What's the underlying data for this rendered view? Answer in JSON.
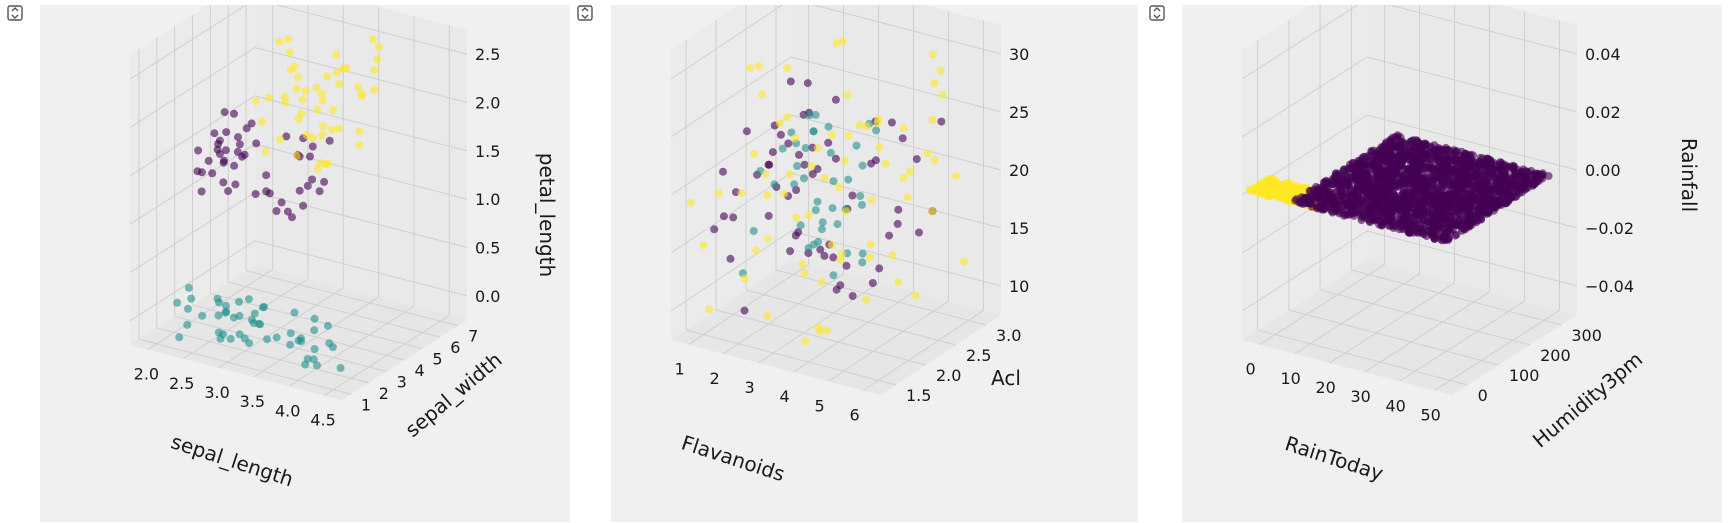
{
  "toolbar": {
    "expand_icon": "expand-output-icon"
  },
  "colors": {
    "panel_bg": "#f0f0f0",
    "grid": "#cfcfcf",
    "viridis_purple": "#440154",
    "viridis_teal": "#21918c",
    "viridis_yellow": "#fde725"
  },
  "chart_data": [
    {
      "type": "scatter",
      "projection": "3d",
      "title": "",
      "xlabel": "sepal_length",
      "ylabel": "sepal_width",
      "zlabel": "petal_length",
      "xticks": [
        "2.0",
        "2.5",
        "3.0",
        "3.5",
        "4.0",
        "4.5"
      ],
      "yticks": [
        "1",
        "2",
        "3",
        "4",
        "5",
        "6",
        "7"
      ],
      "zticks": [
        "0.0",
        "0.5",
        "1.0",
        "1.5",
        "2.0",
        "2.5"
      ],
      "xlim": [
        1.9,
        4.6
      ],
      "ylim": [
        0.5,
        7.3
      ],
      "zlim": [
        0.0,
        2.7
      ],
      "grid": true,
      "colormap": "viridis",
      "series": [
        {
          "color": "#440154",
          "x_range": [
            2.0,
            3.4
          ],
          "y_range": [
            3.0,
            5.1
          ],
          "z_range": [
            1.0,
            1.8
          ],
          "count": 50
        },
        {
          "color": "#21918c",
          "x_range": [
            2.3,
            4.4
          ],
          "y_range": [
            1.0,
            1.9
          ],
          "z_range": [
            0.1,
            0.6
          ],
          "count": 50
        },
        {
          "color": "#fde725",
          "x_range": [
            2.5,
            3.8
          ],
          "y_range": [
            4.5,
            6.9
          ],
          "z_range": [
            1.4,
            2.5
          ],
          "count": 50
        }
      ]
    },
    {
      "type": "scatter",
      "projection": "3d",
      "title": "",
      "xlabel": "Flavanoids",
      "ylabel": "Acl",
      "zlabel": "",
      "xticks": [
        "1",
        "2",
        "3",
        "4",
        "5",
        "6"
      ],
      "yticks": [
        "1.5",
        "2.0",
        "2.5",
        "3.0"
      ],
      "zticks": [
        "10",
        "15",
        "20",
        "25",
        "30"
      ],
      "xlim": [
        0.3,
        6.2
      ],
      "ylim": [
        1.3,
        3.3
      ],
      "zlim": [
        9,
        31
      ],
      "grid": true,
      "colormap": "viridis",
      "series": [
        {
          "color": "#440154",
          "x_range": [
            1.0,
            5.2
          ],
          "y_range": [
            1.4,
            3.0
          ],
          "z_range": [
            12,
            26
          ],
          "count": 59
        },
        {
          "color": "#21918c",
          "x_range": [
            1.3,
            4.0
          ],
          "y_range": [
            1.8,
            3.0
          ],
          "z_range": [
            13,
            25
          ],
          "count": 40
        },
        {
          "color": "#fde725",
          "x_range": [
            0.5,
            5.8
          ],
          "y_range": [
            1.3,
            3.2
          ],
          "z_range": [
            10,
            29
          ],
          "count": 71
        }
      ]
    },
    {
      "type": "scatter",
      "projection": "3d",
      "title": "",
      "xlabel": "RainToday",
      "ylabel": "Humidity3pm",
      "zlabel": "Rainfall",
      "xticks": [
        "0",
        "10",
        "20",
        "30",
        "40",
        "50"
      ],
      "yticks": [
        "0",
        "100",
        "200",
        "300"
      ],
      "zticks": [
        "−0.04",
        "−0.02",
        "0.00",
        "0.02",
        "0.04"
      ],
      "xlim": [
        -8,
        56
      ],
      "ylim": [
        -20,
        360
      ],
      "zlim": [
        -0.055,
        0.055
      ],
      "grid": true,
      "colormap": "viridis",
      "series": [
        {
          "color": "#fde725",
          "x_range": [
            -8,
            15
          ],
          "y_range": [
            0,
            60
          ],
          "z_range": [
            0,
            0
          ],
          "count": 400
        },
        {
          "color": "#440154",
          "x_range": [
            5,
            52
          ],
          "y_range": [
            0,
            320
          ],
          "z_range": [
            0,
            0
          ],
          "count": 2000
        }
      ]
    }
  ]
}
